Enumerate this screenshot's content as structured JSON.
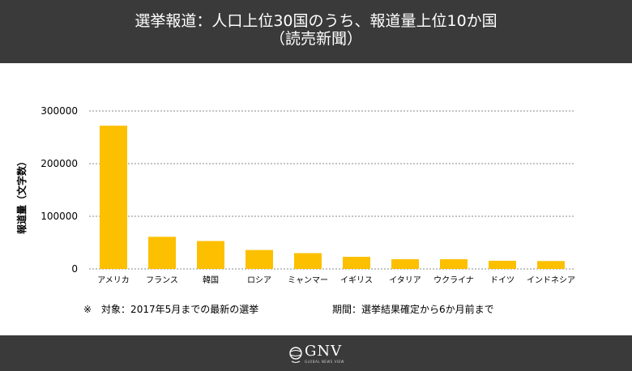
{
  "header": {
    "title_line1": "選挙報道：人口上位30国のうち、報道量上位10か国",
    "title_line2": "（読売新聞）"
  },
  "chart_data": {
    "type": "bar",
    "title": "選挙報道：人口上位30国のうち、報道量上位10か国（読売新聞）",
    "xlabel": "",
    "ylabel": "報道量（文字数）",
    "categories": [
      "アメリカ",
      "フランス",
      "韓国",
      "ロシア",
      "ミャンマー",
      "イギリス",
      "イタリア",
      "ウクライナ",
      "ドイツ",
      "インドネシア"
    ],
    "values": [
      272000,
      61000,
      53000,
      36000,
      30000,
      23000,
      18500,
      18500,
      15500,
      15000
    ],
    "ylim": [
      0,
      300000
    ],
    "yticks": [
      "0",
      "100000",
      "200000",
      "300000"
    ],
    "grid": true,
    "bar_color": "#fcc000"
  },
  "notes": {
    "note1": "※　対象：2017年5月までの最新の選挙",
    "note2": "期間：選挙結果確定から6か月前まで"
  },
  "footer": {
    "logo_text": "GNV",
    "logo_sub": "GLOBAL NEWS VIEW"
  },
  "colors": {
    "header_bg": "#3a3a3a",
    "bar": "#fcc000"
  }
}
